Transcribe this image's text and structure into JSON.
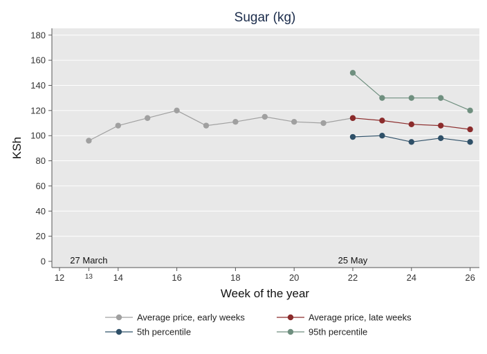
{
  "chart_data": {
    "type": "line",
    "title": "Sugar (kg)",
    "xlabel": "Week of the year",
    "ylabel": "KSh",
    "xlim": [
      11.5,
      26
    ],
    "ylim": [
      0,
      180
    ],
    "xticks": [
      12,
      14,
      16,
      18,
      20,
      22,
      24,
      26
    ],
    "yticks": [
      0,
      20,
      40,
      60,
      80,
      100,
      120,
      140,
      160,
      180
    ],
    "extra_xtick": {
      "value": 13,
      "label": "13"
    },
    "grid": true,
    "legend_position": "bottom",
    "background": "#e8e8e8",
    "annotations": [
      {
        "text": "27 March",
        "x": 13,
        "y": 0
      },
      {
        "text": "25 May",
        "x": 22,
        "y": 0
      }
    ],
    "series": [
      {
        "name": "Average price, early weeks",
        "color": "#a0a0a0",
        "x": [
          13,
          14,
          15,
          16,
          17,
          18,
          19,
          20,
          21,
          22
        ],
        "y": [
          96,
          108,
          114,
          120,
          108,
          111,
          115,
          111,
          110,
          114
        ]
      },
      {
        "name": "Average price, late weeks",
        "color": "#8b2b2b",
        "x": [
          22,
          23,
          24,
          25,
          26
        ],
        "y": [
          114,
          112,
          109,
          108,
          105
        ]
      },
      {
        "name": "5th percentile",
        "color": "#2f5068",
        "x": [
          22,
          23,
          24,
          25,
          26
        ],
        "y": [
          99,
          100,
          95,
          98,
          95
        ]
      },
      {
        "name": "95th percentile",
        "color": "#6f8f7f",
        "x": [
          22,
          23,
          24,
          25,
          26
        ],
        "y": [
          150,
          130,
          130,
          130,
          120
        ]
      }
    ]
  }
}
